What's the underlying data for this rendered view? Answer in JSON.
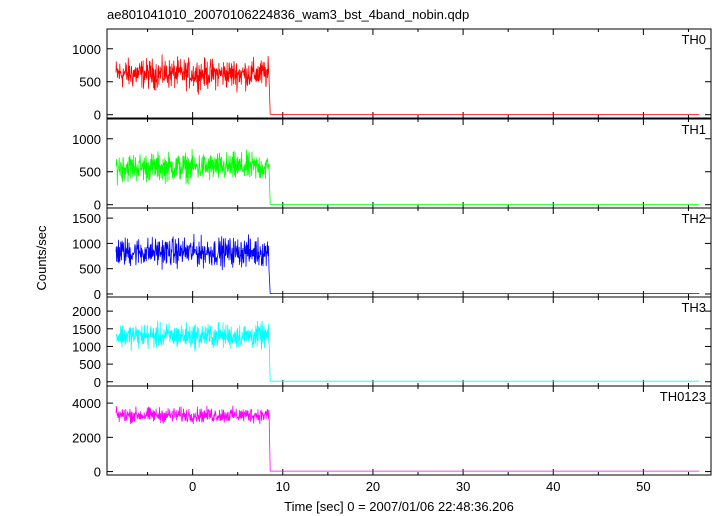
{
  "chart_data": {
    "type": "line",
    "title": "ae801041010_20070106224836_wam3_bst_4band_nobin.qdp",
    "xlabel": "Time [sec] 0 = 2007/01/06 22:48:36.206",
    "ylabel": "Counts/sec",
    "xlim": [
      -9.5,
      57.5
    ],
    "x_ticks": [
      0,
      10,
      20,
      30,
      40,
      50
    ],
    "x_tick_labels": [
      "0",
      "10",
      "20",
      "30",
      "40",
      "50"
    ],
    "burst_interval": {
      "start": -8.5,
      "end": 8.5
    },
    "data_end": 56.2,
    "grid": false,
    "series": [
      {
        "name": "TH0",
        "color": "#ff0000",
        "ylim": [
          -50,
          1300
        ],
        "y_ticks": [
          0,
          500,
          1000
        ],
        "y_tick_labels": [
          "0",
          "500",
          "1000"
        ],
        "burst_mean": 620,
        "burst_spread": 330,
        "baseline": 5
      },
      {
        "name": "TH1",
        "color": "#00ff00",
        "ylim": [
          -50,
          1300
        ],
        "y_ticks": [
          0,
          500,
          1000
        ],
        "y_tick_labels": [
          "0",
          "500",
          "1000"
        ],
        "burst_mean": 570,
        "burst_spread": 320,
        "baseline": 5
      },
      {
        "name": "TH2",
        "color": "#0000ff",
        "ylim": [
          -60,
          1700
        ],
        "y_ticks": [
          0,
          500,
          1000,
          1500
        ],
        "y_tick_labels": [
          "0",
          "500",
          "1000",
          "1500"
        ],
        "burst_mean": 830,
        "burst_spread": 420,
        "baseline": 8
      },
      {
        "name": "TH3",
        "color": "#00ffff",
        "ylim": [
          -120,
          2400
        ],
        "y_ticks": [
          0,
          500,
          1000,
          1500,
          2000
        ],
        "y_tick_labels": [
          "0",
          "500",
          "1000",
          "1500",
          "2000"
        ],
        "burst_mean": 1300,
        "burst_spread": 520,
        "baseline": 15
      },
      {
        "name": "TH0123",
        "color": "#ff00ff",
        "ylim": [
          -200,
          5000
        ],
        "y_ticks": [
          0,
          2000,
          4000
        ],
        "y_tick_labels": [
          "0",
          "2000",
          "4000"
        ],
        "burst_mean": 3300,
        "burst_spread": 650,
        "baseline": 25
      }
    ]
  }
}
